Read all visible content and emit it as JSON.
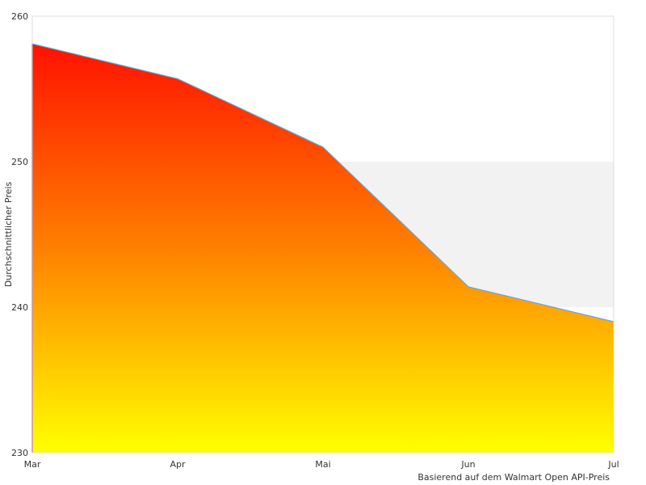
{
  "chart_data": {
    "type": "area",
    "categories": [
      "Mar",
      "Apr",
      "Mai",
      "Jun",
      "Jul"
    ],
    "series": [
      {
        "values": [
          258.1,
          255.7,
          251.0,
          241.4,
          239.0
        ]
      }
    ],
    "ylabel": "Durchschnittlicher Preis",
    "xlabel": "",
    "ylim": [
      230,
      260
    ],
    "yticks": [
      230,
      240,
      250,
      260
    ],
    "band": [
      240,
      250
    ],
    "grid": false,
    "legend": "none",
    "credit": "Basierend auf dem Walmart Open API-Preis",
    "colors": {
      "fill_top": "#ff1100",
      "fill_mid": "#ff8000",
      "fill_bottom": "#ffff00",
      "line": "#6aa6d6",
      "band": "#f2f2f2",
      "plot_border": "#dddddd"
    }
  }
}
